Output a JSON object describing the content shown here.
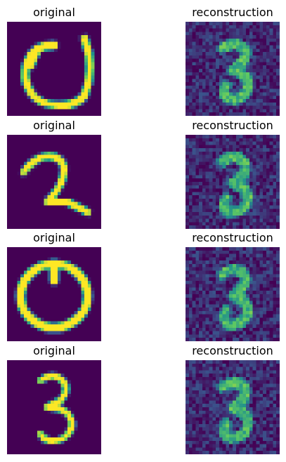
{
  "grid_rows": [
    {
      "left_title": "original",
      "right_title": "reconstruction",
      "digit": "0"
    },
    {
      "left_title": "original",
      "right_title": "reconstruction",
      "digit": "2"
    },
    {
      "left_title": "original",
      "right_title": "reconstruction",
      "digit": "0"
    },
    {
      "left_title": "original",
      "right_title": "reconstruction",
      "digit": "3"
    }
  ],
  "colors": {
    "background": "#440154",
    "foreground": "#fde725",
    "mid": "#21918c"
  }
}
